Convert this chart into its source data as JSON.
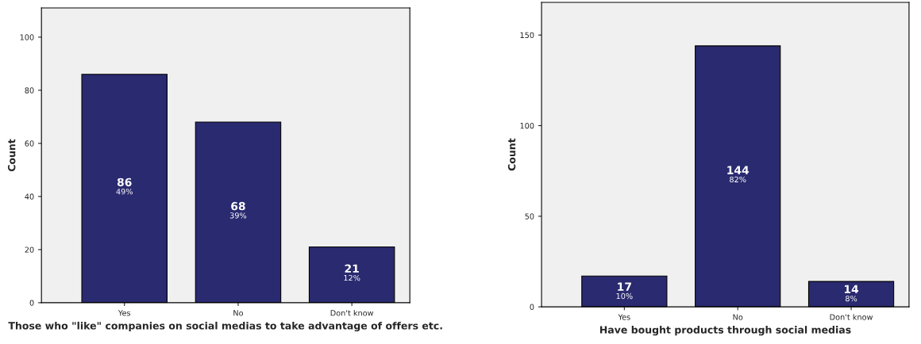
{
  "chart_data": [
    {
      "type": "bar",
      "xlabel": "Those who \"like\" companies on social medias to take advantage of offers etc.",
      "ylabel": "Count",
      "categories": [
        "Yes",
        "No",
        "Don't know"
      ],
      "values": [
        86,
        68,
        21
      ],
      "value_labels": [
        "86\n49%",
        "68\n39%",
        "21\n12%"
      ],
      "color": "#2a2a70",
      "ylim": [
        0,
        111
      ],
      "yticks": [
        0,
        20,
        40,
        60,
        80,
        100
      ],
      "grid": false
    },
    {
      "type": "bar",
      "xlabel": "Have bought products through social medias",
      "ylabel": "Count",
      "categories": [
        "Yes",
        "No",
        "Don't know"
      ],
      "values": [
        17,
        144,
        14
      ],
      "value_labels": [
        "17\n10%",
        "144\n82%",
        "14\n8%"
      ],
      "color": "#2a2a70",
      "ylim": [
        0,
        168
      ],
      "yticks": [
        0,
        50,
        100,
        150
      ],
      "grid": false
    }
  ]
}
